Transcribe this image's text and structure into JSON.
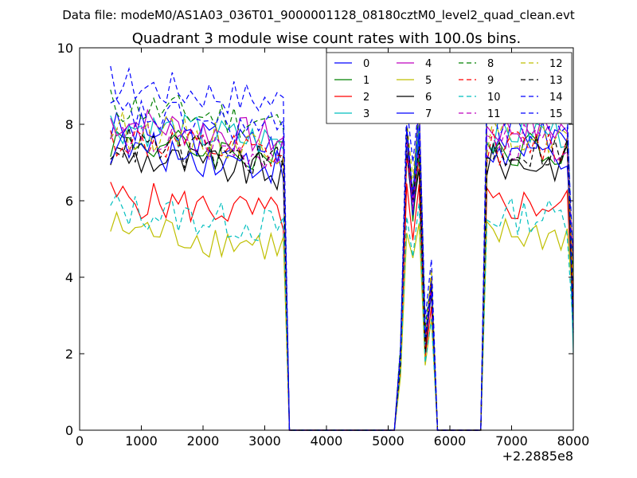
{
  "header": {
    "data_file": "Data file: modeM0/AS1A03_036T01_9000001128_08180cztM0_level2_quad_clean.evt"
  },
  "chart_data": {
    "type": "line",
    "title": "Quadrant 3 module wise count rates with 100.0s bins.",
    "xlabel": "",
    "ylabel": "",
    "x_offset_label": "+2.2885e8",
    "xlim": [
      0,
      8000
    ],
    "ylim": [
      0,
      10
    ],
    "xticks": [
      0,
      1000,
      2000,
      3000,
      4000,
      5000,
      6000,
      7000,
      8000
    ],
    "yticks": [
      0,
      2,
      4,
      6,
      8,
      10
    ],
    "legend_position": "top-right",
    "legend_columns": 4,
    "segments": [
      {
        "x_start": 500,
        "x_end": 3300,
        "step": 100
      },
      {
        "x_start": 5200,
        "x_end": 5700,
        "step": 100
      },
      {
        "x_start": 6500,
        "x_end": 8000,
        "step": 100
      }
    ],
    "zero_points": [
      3400,
      5100,
      5800,
      6400
    ],
    "seg2_profile": [
      0.25,
      0.98,
      0.78,
      1.0,
      0.3
    ],
    "series": [
      {
        "name": "0",
        "color": "#0000ff",
        "style": "solid",
        "level": 7.9
      },
      {
        "name": "1",
        "color": "#008000",
        "style": "solid",
        "level": 7.6
      },
      {
        "name": "2",
        "color": "#ff0000",
        "style": "solid",
        "level": 6.1
      },
      {
        "name": "3",
        "color": "#00bfbf",
        "style": "solid",
        "level": 8.0
      },
      {
        "name": "4",
        "color": "#bf00bf",
        "style": "solid",
        "level": 8.1
      },
      {
        "name": "5",
        "color": "#bfbf00",
        "style": "solid",
        "level": 5.3
      },
      {
        "name": "6",
        "color": "#000000",
        "style": "solid",
        "level": 7.2
      },
      {
        "name": "7",
        "color": "#0000ff",
        "style": "solid",
        "level": 7.4
      },
      {
        "name": "8",
        "color": "#008000",
        "style": "dashed",
        "level": 8.5
      },
      {
        "name": "9",
        "color": "#ff0000",
        "style": "dashed",
        "level": 7.6
      },
      {
        "name": "10",
        "color": "#00bfbf",
        "style": "dashed",
        "level": 5.8
      },
      {
        "name": "11",
        "color": "#bf00bf",
        "style": "dashed",
        "level": 7.7
      },
      {
        "name": "12",
        "color": "#bfbf00",
        "style": "dashed",
        "level": 7.9
      },
      {
        "name": "13",
        "color": "#000000",
        "style": "dashed",
        "level": 7.5
      },
      {
        "name": "14",
        "color": "#0000ff",
        "style": "dashed",
        "level": 9.1
      },
      {
        "name": "15",
        "color": "#0000ff",
        "style": "dashed",
        "level": 8.3
      }
    ]
  }
}
